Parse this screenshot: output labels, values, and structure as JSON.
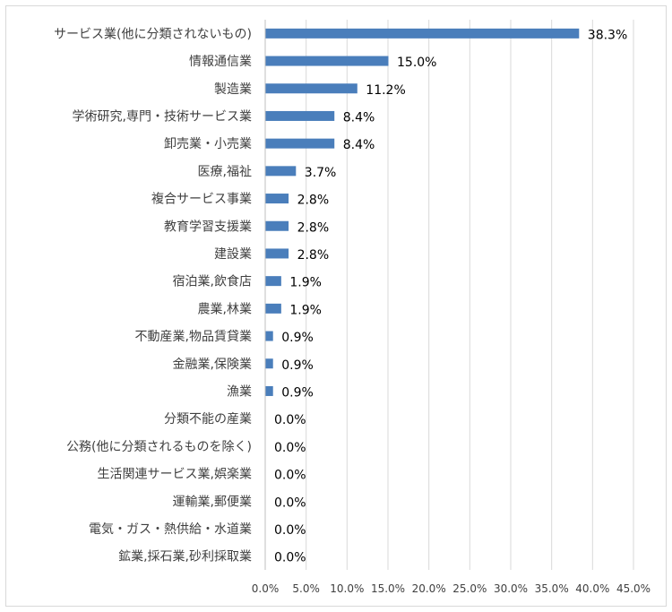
{
  "chart_data": {
    "type": "bar",
    "orientation": "horizontal",
    "categories": [
      "サービス業(他に分類されないもの)",
      "情報通信業",
      "製造業",
      "学術研究,専門・技術サービス業",
      "卸売業・小売業",
      "医療,福祉",
      "複合サービス事業",
      "教育学習支援業",
      "建設業",
      "宿泊業,飲食店",
      "農業,林業",
      "不動産業,物品賃貸業",
      "金融業,保険業",
      "漁業",
      "分類不能の産業",
      "公務(他に分類されるものを除く)",
      "生活関連サービス業,娯楽業",
      "運輸業,郵便業",
      "電気・ガス・熱供給・水道業",
      "鉱業,採石業,砂利採取業"
    ],
    "values": [
      38.3,
      15.0,
      11.2,
      8.4,
      8.4,
      3.7,
      2.8,
      2.8,
      2.8,
      1.9,
      1.9,
      0.9,
      0.9,
      0.9,
      0.0,
      0.0,
      0.0,
      0.0,
      0.0,
      0.0
    ],
    "data_labels": [
      "38.3%",
      "15.0%",
      "11.2%",
      "8.4%",
      "8.4%",
      "3.7%",
      "2.8%",
      "2.8%",
      "2.8%",
      "1.9%",
      "1.9%",
      "0.9%",
      "0.9%",
      "0.9%",
      "0.0%",
      "0.0%",
      "0.0%",
      "0.0%",
      "0.0%",
      "0.0%"
    ],
    "xlim": [
      0,
      45
    ],
    "x_ticks": [
      0,
      5,
      10,
      15,
      20,
      25,
      30,
      35,
      40,
      45
    ],
    "x_tick_labels": [
      "0.0%",
      "5.0%",
      "10.0%",
      "15.0%",
      "20.0%",
      "25.0%",
      "30.0%",
      "35.0%",
      "40.0%",
      "45.0%"
    ],
    "grid": "vertical",
    "legend": "none",
    "title": "",
    "xlabel": "",
    "ylabel": "",
    "colors": {
      "bar": "#4a7ebb",
      "grid": "#d9d9d9",
      "axis": "#bfbfbf"
    }
  }
}
